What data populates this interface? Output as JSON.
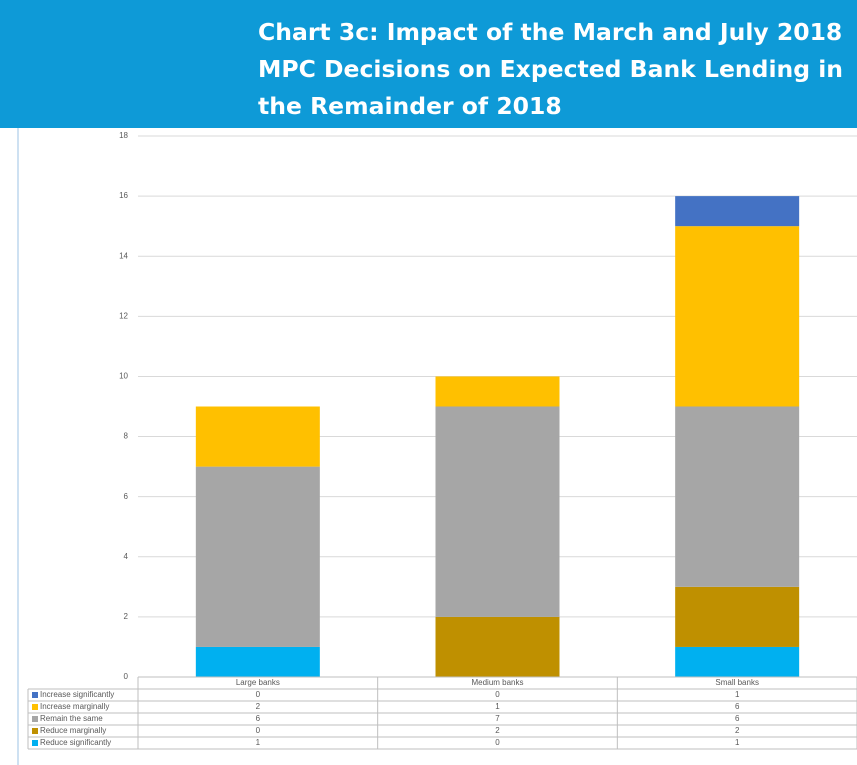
{
  "chart_data": {
    "type": "stacked_bar",
    "title": "Chart 3c: Impact of the March and July 2018 MPC Decisions on Expected Bank Lending in the Remainder of 2018",
    "categories": [
      "Large banks",
      "Medium banks",
      "Small banks"
    ],
    "series": [
      {
        "name": "Reduce significantly",
        "color": "#00b0f0",
        "values": [
          1,
          0,
          1
        ]
      },
      {
        "name": "Reduce marginally",
        "color": "#bf9000",
        "values": [
          0,
          2,
          2
        ]
      },
      {
        "name": "Remain the same",
        "color": "#a6a6a6",
        "values": [
          6,
          7,
          6
        ]
      },
      {
        "name": "Increase marginally",
        "color": "#ffc000",
        "values": [
          2,
          1,
          6
        ]
      },
      {
        "name": "Increase significantly",
        "color": "#4472c4",
        "values": [
          0,
          0,
          1
        ]
      }
    ],
    "ylim": [
      0,
      18
    ],
    "yticks": [
      0,
      2,
      4,
      6,
      8,
      10,
      12,
      14,
      16,
      18
    ],
    "grid": true
  }
}
